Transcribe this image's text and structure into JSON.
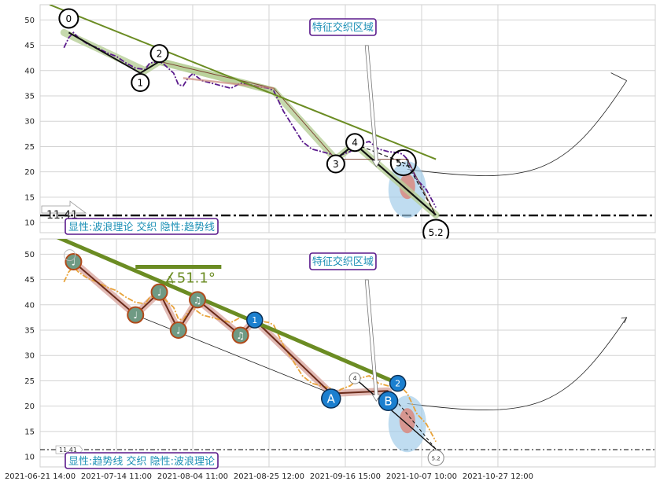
{
  "chart_data": [
    {
      "panel": "top",
      "type": "line",
      "ylim": [
        8,
        53
      ],
      "yticks": [
        10,
        15,
        20,
        25,
        30,
        35,
        40,
        45,
        50
      ],
      "grid": true,
      "price_path": [
        [
          0,
          44.5
        ],
        [
          1,
          46.5
        ],
        [
          2,
          47.5
        ],
        [
          3,
          46.5
        ],
        [
          5,
          45.2
        ],
        [
          7,
          44.5
        ],
        [
          9,
          43.5
        ],
        [
          11,
          42.8
        ],
        [
          13,
          41.5
        ],
        [
          15,
          40.5
        ],
        [
          17,
          40.2
        ],
        [
          18,
          41.5
        ],
        [
          20,
          41.8
        ],
        [
          21,
          41.2
        ],
        [
          23,
          39.5
        ],
        [
          24,
          37.2
        ],
        [
          25,
          37.0
        ],
        [
          26,
          38.5
        ],
        [
          27,
          39.4
        ],
        [
          29,
          38.0
        ],
        [
          31,
          37.5
        ],
        [
          33,
          37.0
        ],
        [
          35,
          36.5
        ],
        [
          37,
          37.5
        ],
        [
          39,
          37.2
        ],
        [
          41,
          36.8
        ],
        [
          43,
          36.5
        ],
        [
          44,
          36.0
        ],
        [
          46,
          32.0
        ],
        [
          48,
          29.0
        ],
        [
          50,
          26.0
        ],
        [
          52,
          24.5
        ],
        [
          54,
          24.0
        ],
        [
          56,
          23.5
        ],
        [
          57,
          22.5
        ],
        [
          58,
          23.3
        ],
        [
          60,
          24.0
        ],
        [
          62,
          25.5
        ],
        [
          64,
          26.0
        ],
        [
          66,
          24.5
        ],
        [
          68,
          24.0
        ],
        [
          70,
          23.8
        ],
        [
          71,
          23.5
        ],
        [
          72,
          22.5
        ],
        [
          74,
          18.5
        ],
        [
          76,
          16.5
        ],
        [
          78,
          13.0
        ]
      ],
      "wave_points": [
        {
          "label": "0",
          "x": 1,
          "y": 47.5
        },
        {
          "label": "1",
          "x": 16,
          "y": 39.5
        },
        {
          "label": "2",
          "x": 20,
          "y": 41.8
        },
        {
          "label": "3",
          "x": 57,
          "y": 22.5
        },
        {
          "label": "4",
          "x": 61,
          "y": 25.5
        },
        {
          "label": "5.1",
          "x": 72,
          "y": 21.5
        },
        {
          "label": "5.2",
          "x": 78,
          "y": 11.5
        }
      ],
      "trendline": {
        "x": [
          -3,
          78
        ],
        "y": [
          53,
          22.5
        ]
      },
      "projection": {
        "x": [
          72,
          118
        ],
        "y": [
          20.5,
          38
        ]
      },
      "support_level": {
        "value": 11.41,
        "label": "11.41"
      },
      "annotation": "特征交织区域",
      "caption": "显性:波浪理论 交织 隐性:趋势线"
    },
    {
      "panel": "bottom",
      "type": "line",
      "ylim": [
        8,
        53
      ],
      "yticks": [
        10,
        15,
        20,
        25,
        30,
        35,
        40,
        45,
        50
      ],
      "grid": true,
      "price_path": [
        [
          0,
          44.5
        ],
        [
          1,
          46.5
        ],
        [
          2,
          47.5
        ],
        [
          3,
          46.5
        ],
        [
          5,
          45.2
        ],
        [
          7,
          44.5
        ],
        [
          9,
          43.5
        ],
        [
          11,
          42.8
        ],
        [
          13,
          41.5
        ],
        [
          15,
          40.5
        ],
        [
          17,
          40.2
        ],
        [
          18,
          41.5
        ],
        [
          20,
          41.8
        ],
        [
          21,
          41.2
        ],
        [
          23,
          39.5
        ],
        [
          24,
          37.2
        ],
        [
          25,
          37.0
        ],
        [
          26,
          38.5
        ],
        [
          27,
          39.4
        ],
        [
          29,
          38.0
        ],
        [
          31,
          37.5
        ],
        [
          33,
          37.0
        ],
        [
          35,
          36.5
        ],
        [
          37,
          37.5
        ],
        [
          39,
          37.2
        ],
        [
          41,
          36.8
        ],
        [
          43,
          36.5
        ],
        [
          44,
          36.0
        ],
        [
          46,
          32.0
        ],
        [
          48,
          29.0
        ],
        [
          50,
          26.0
        ],
        [
          52,
          24.5
        ],
        [
          54,
          24.0
        ],
        [
          56,
          23.5
        ],
        [
          57,
          22.5
        ],
        [
          58,
          23.3
        ],
        [
          60,
          24.0
        ],
        [
          62,
          25.5
        ],
        [
          64,
          26.0
        ],
        [
          66,
          24.5
        ],
        [
          68,
          24.0
        ],
        [
          70,
          23.8
        ],
        [
          71,
          23.5
        ],
        [
          72,
          22.5
        ],
        [
          74,
          18.5
        ],
        [
          76,
          16.5
        ],
        [
          78,
          13.0
        ]
      ],
      "note_points": [
        {
          "x": 2,
          "y": 48.5
        },
        {
          "x": 15,
          "y": 38
        },
        {
          "x": 20,
          "y": 42.5
        },
        {
          "x": 24,
          "y": 35
        },
        {
          "x": 28,
          "y": 41
        },
        {
          "x": 37,
          "y": 34
        }
      ],
      "labelled_points": [
        {
          "label": "1",
          "x": 40,
          "y": 37
        },
        {
          "label": "A",
          "x": 56,
          "y": 21.5
        },
        {
          "label": "2",
          "x": 70,
          "y": 24.5
        },
        {
          "label": "B",
          "x": 68,
          "y": 21
        }
      ],
      "trendline": {
        "x": [
          -3,
          70
        ],
        "y": [
          54,
          24.5
        ]
      },
      "horizontal_bar": {
        "x": [
          15,
          33
        ],
        "y": 47.5
      },
      "angle_label": "∡51.1°",
      "projection": {
        "x": [
          72,
          118
        ],
        "y": [
          20.5,
          37.5
        ]
      },
      "support_level": {
        "value": 11.41,
        "label": "11.41"
      },
      "end_label": "5.2",
      "mid_label": "4",
      "annotation": "特征交织区域",
      "caption": "显性:趋势线 交织 隐性:波浪理论"
    }
  ],
  "x_axis": {
    "range": [
      -5,
      124
    ],
    "ticks": [
      {
        "x": -5,
        "label": "2021-06-21 14:00"
      },
      {
        "x": 11,
        "label": "2021-07-14 11:00"
      },
      {
        "x": 27,
        "label": "2021-08-04 11:00"
      },
      {
        "x": 43,
        "label": "2021-08-25 12:00"
      },
      {
        "x": 59,
        "label": "2021-09-16 15:00"
      },
      {
        "x": 75,
        "label": "2021-10-07 10:00"
      },
      {
        "x": 91,
        "label": "2021-10-27 12:00"
      }
    ]
  },
  "colors": {
    "purple": "#5a1a8c",
    "orange": "#e8a33a",
    "olive": "#6b8c23",
    "trend_bg": "#b8cf98",
    "pink_bg": "#d9a8a0",
    "blue_circle": "#1b7fcf",
    "note_fill": "#6f9a84",
    "note_edge": "#b04a1a",
    "caption_border": "#5a1a8c",
    "caption_text": "#1a8fb5"
  }
}
